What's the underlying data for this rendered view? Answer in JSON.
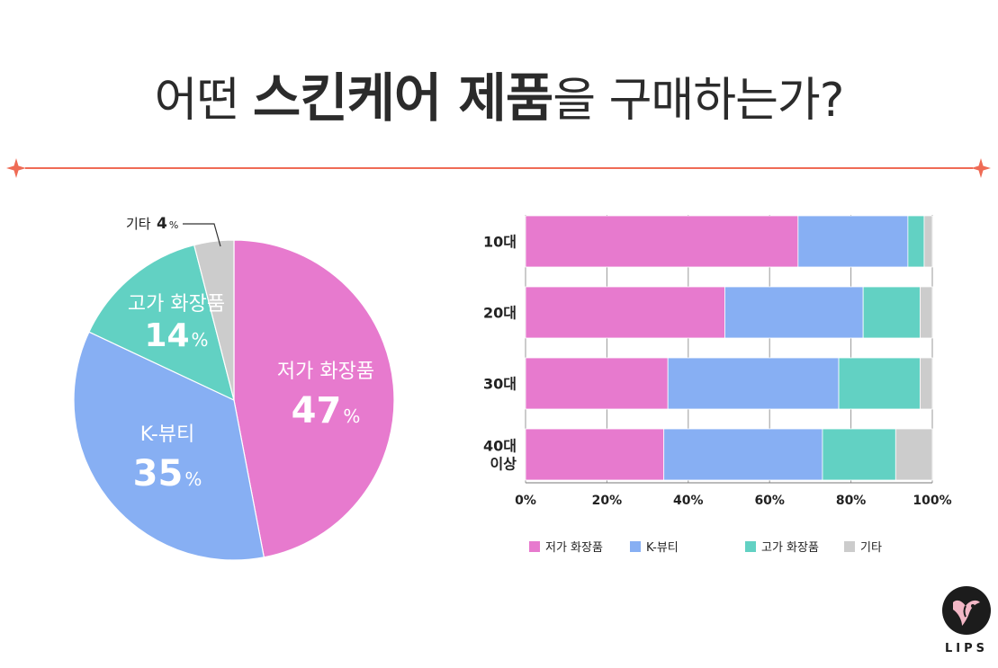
{
  "header": {
    "title_prefix": "어떤",
    "title_emphasis": "스킨케어 제품",
    "title_suffix": "을 구매하는가?"
  },
  "colors": {
    "low_cost": "#e77ace",
    "kbeauty": "#87aff3",
    "high_end": "#62d1c3",
    "other": "#cccccc",
    "accent": "#ef6b55"
  },
  "chart_data": [
    {
      "type": "pie",
      "slices": [
        {
          "label": "저가 화장품",
          "value": 47,
          "value_text": "47",
          "unit": "%"
        },
        {
          "label": "K-뷰티",
          "value": 35,
          "value_text": "35",
          "unit": "%"
        },
        {
          "label": "고가 화장품",
          "value": 14,
          "value_text": "14",
          "unit": "%"
        },
        {
          "label": "기타",
          "value": 4,
          "value_text": "4",
          "unit": "%"
        }
      ]
    },
    {
      "type": "bar",
      "orientation": "horizontal-stacked",
      "categories": [
        "10대",
        "20대",
        "30대",
        "40대\n이상"
      ],
      "series": [
        {
          "name": "저가 화장품",
          "values": [
            67,
            49,
            35,
            34
          ]
        },
        {
          "name": "K-뷰티",
          "values": [
            27,
            34,
            42,
            39
          ]
        },
        {
          "name": "고가 화장품",
          "values": [
            4,
            14,
            20,
            18
          ]
        },
        {
          "name": "기타",
          "values": [
            2,
            3,
            3,
            9
          ]
        }
      ],
      "xlim": [
        0,
        100
      ],
      "x_ticks": [
        "0%",
        "20%",
        "40%",
        "60%",
        "80%",
        "100%"
      ],
      "grid": true,
      "legend_position": "bottom"
    }
  ],
  "brand": {
    "logo_text": "LIPS"
  }
}
